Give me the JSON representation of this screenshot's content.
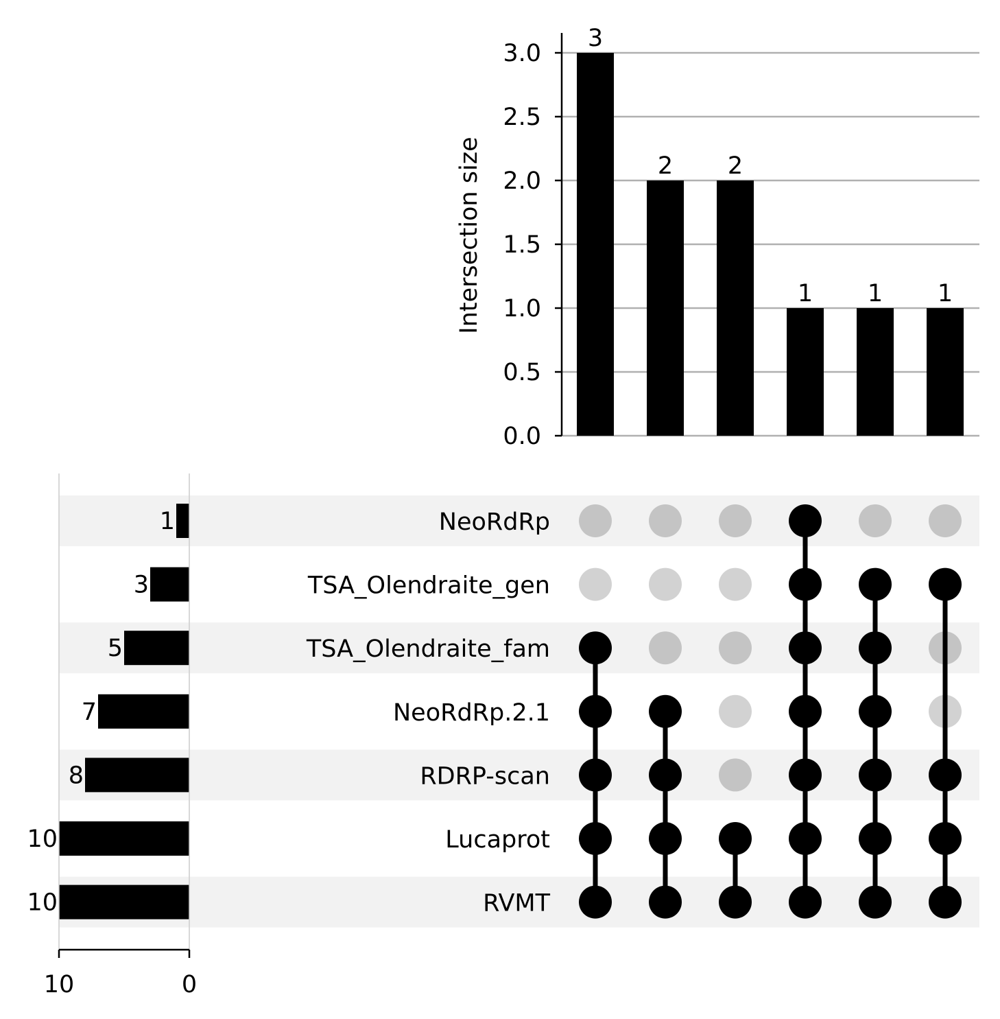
{
  "chart_data": {
    "type": "upset",
    "title": "",
    "intersection_ylabel": "Intersection size",
    "intersection_ylim": [
      0,
      3.15
    ],
    "intersection_yticks": [
      "0.0",
      "0.5",
      "1.0",
      "1.5",
      "2.0",
      "2.5",
      "3.0"
    ],
    "intersection_grid": true,
    "sets": [
      "NeoRdRp",
      "TSA_Olendraite_gen",
      "TSA_Olendraite_fam",
      "NeoRdRp.2.1",
      "RDRP-scan",
      "Lucaprot",
      "RVMT"
    ],
    "set_sizes": [
      1,
      3,
      5,
      7,
      8,
      10,
      10
    ],
    "set_size_xlim": [
      10,
      0
    ],
    "set_size_xticks": [
      "10",
      "0"
    ],
    "intersections": [
      {
        "sets": [
          "TSA_Olendraite_fam",
          "NeoRdRp.2.1",
          "RDRP-scan",
          "Lucaprot",
          "RVMT"
        ],
        "size": 3
      },
      {
        "sets": [
          "NeoRdRp.2.1",
          "RDRP-scan",
          "Lucaprot",
          "RVMT"
        ],
        "size": 2
      },
      {
        "sets": [
          "Lucaprot",
          "RVMT"
        ],
        "size": 2
      },
      {
        "sets": [
          "NeoRdRp",
          "TSA_Olendraite_gen",
          "TSA_Olendraite_fam",
          "NeoRdRp.2.1",
          "RDRP-scan",
          "Lucaprot",
          "RVMT"
        ],
        "size": 1
      },
      {
        "sets": [
          "TSA_Olendraite_gen",
          "TSA_Olendraite_fam",
          "NeoRdRp.2.1",
          "RDRP-scan",
          "Lucaprot",
          "RVMT"
        ],
        "size": 1
      },
      {
        "sets": [
          "TSA_Olendraite_gen",
          "RDRP-scan",
          "Lucaprot",
          "RVMT"
        ],
        "size": 1
      }
    ],
    "colors": {
      "bar": "#000000",
      "active_dot": "#000000",
      "inactive_dot_on_shaded": "#c4c4c4",
      "inactive_dot_on_white": "#d2d2d2",
      "row_shade": "#f2f2f2",
      "grid": "#b0b0b0"
    }
  }
}
